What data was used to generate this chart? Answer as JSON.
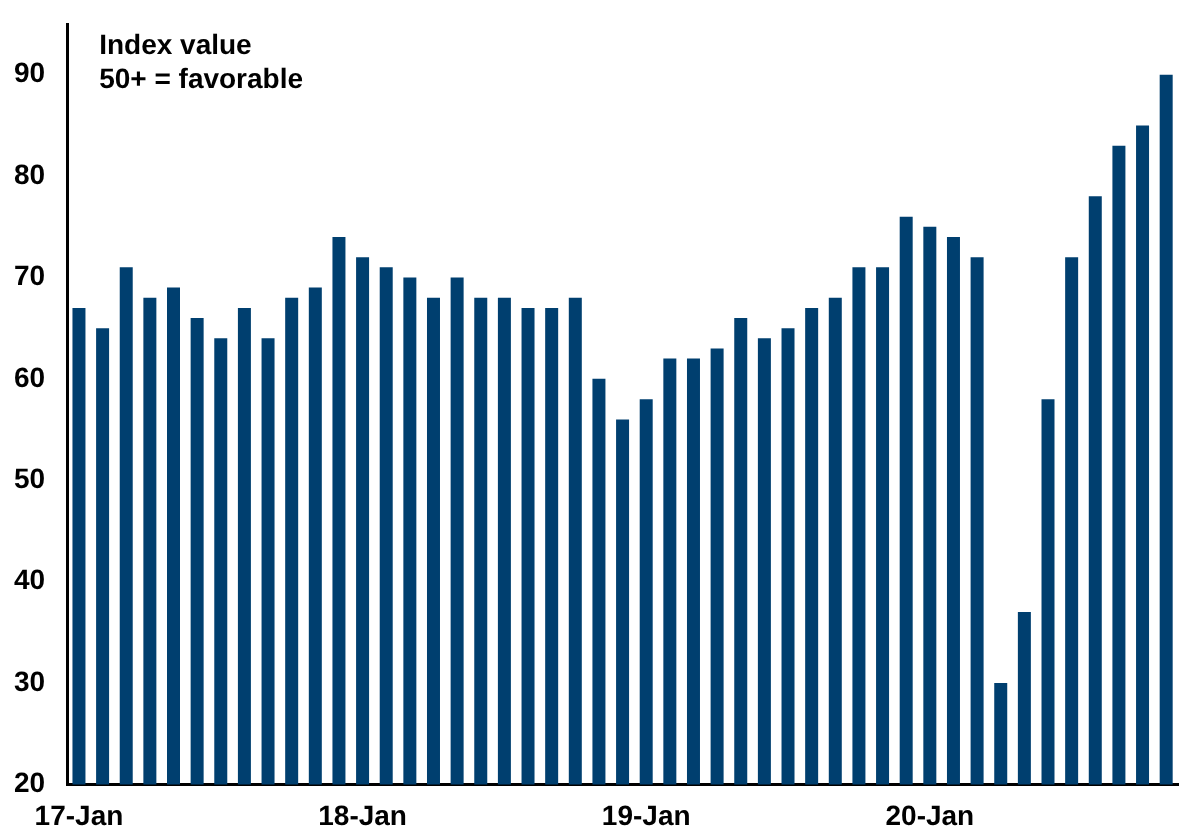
{
  "chart_data": {
    "type": "bar",
    "categories": [
      "17-Jan",
      null,
      null,
      null,
      null,
      null,
      null,
      null,
      null,
      null,
      null,
      null,
      "18-Jan",
      null,
      null,
      null,
      null,
      null,
      null,
      null,
      null,
      null,
      null,
      null,
      "19-Jan",
      null,
      null,
      null,
      null,
      null,
      null,
      null,
      null,
      null,
      null,
      null,
      "20-Jan",
      null,
      null,
      null,
      null,
      null,
      null,
      null,
      null,
      null,
      null
    ],
    "values": [
      67,
      65,
      71,
      68,
      69,
      66,
      64,
      67,
      64,
      68,
      69,
      74,
      72,
      71,
      70,
      68,
      70,
      68,
      68,
      67,
      67,
      68,
      60,
      56,
      58,
      62,
      62,
      63,
      66,
      64,
      65,
      67,
      68,
      71,
      71,
      76,
      75,
      74,
      72,
      30,
      37,
      58,
      72,
      78,
      83,
      85,
      90
    ],
    "color": "#003f6f",
    "ylim": [
      20,
      95
    ],
    "yticks": [
      20,
      30,
      40,
      50,
      60,
      70,
      80,
      90
    ],
    "grid": false,
    "annotations": [
      "Index value",
      "50+ = favorable"
    ]
  }
}
